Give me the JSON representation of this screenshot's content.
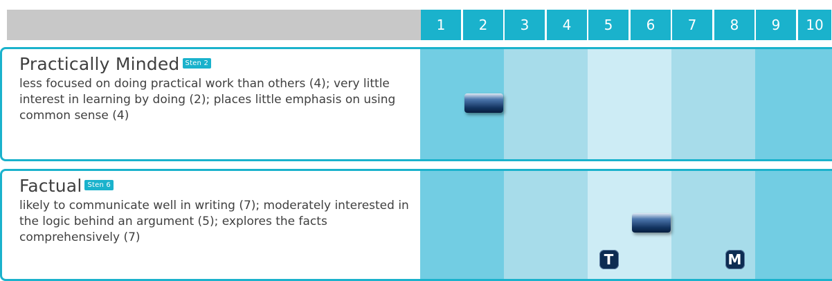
{
  "header": {
    "scale": [
      "1",
      "2",
      "3",
      "4",
      "5",
      "6",
      "7",
      "8",
      "9",
      "10"
    ]
  },
  "colors": {
    "accent": "#1ab2cc",
    "band_dark": "#72cde3",
    "band_mid": "#a7dcea",
    "band_light": "#cdecf5",
    "marker": "#12335f"
  },
  "scales": [
    {
      "title": "Practically Minded",
      "sten_label": "Sten 2",
      "sten": 2,
      "description": "less focused on doing practical work than others (4); very little interest in learning by doing (2); places little emphasis on using common sense (4)",
      "markers": []
    },
    {
      "title": "Factual",
      "sten_label": "Sten 6",
      "sten": 6,
      "description": "likely to communicate well in writing (7); moderately interested in the logic behind an argument (5); explores the facts comprehensively (7)",
      "markers": [
        {
          "label": "T",
          "sten": 5
        },
        {
          "label": "M",
          "sten": 8
        }
      ]
    }
  ]
}
